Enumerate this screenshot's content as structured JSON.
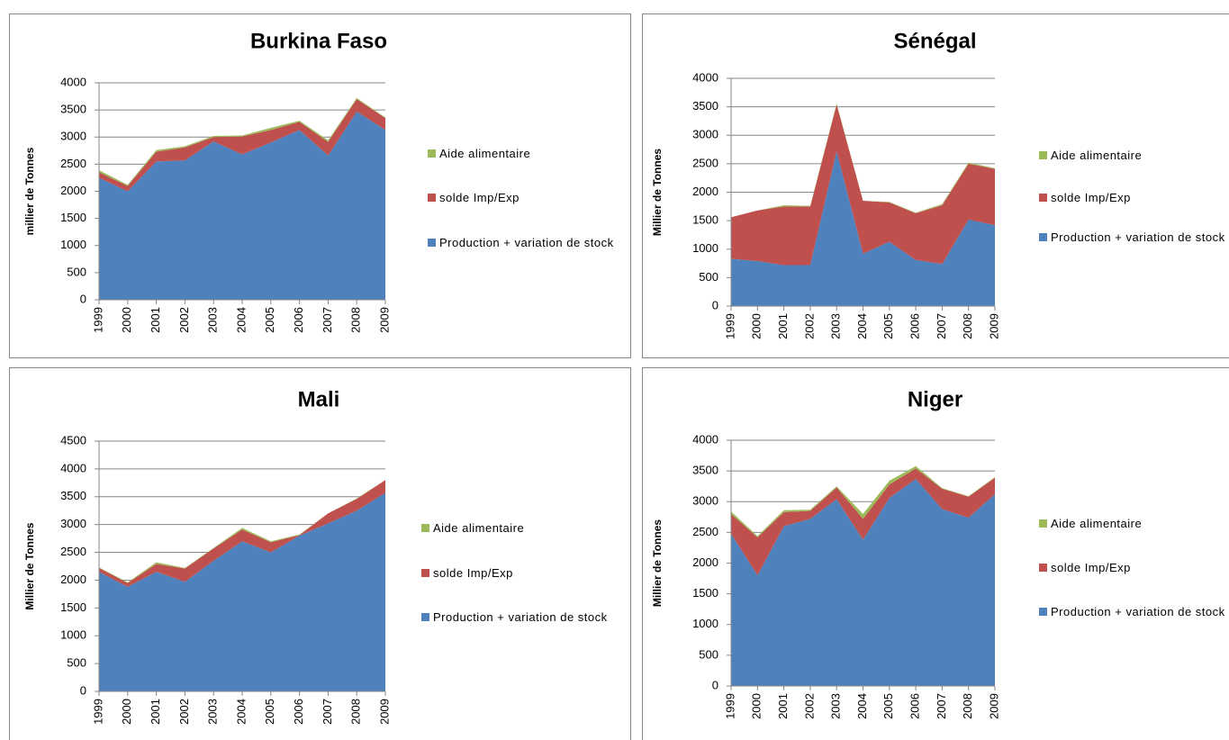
{
  "chart_data": [
    {
      "type": "area",
      "title": "Burkina Faso",
      "y_label": "millier de Tonnes",
      "categories": [
        "1999",
        "2000",
        "2001",
        "2002",
        "2003",
        "2004",
        "2005",
        "2006",
        "2007",
        "2008",
        "2009"
      ],
      "series": [
        {
          "name": "Production + variation de stock",
          "color": "#4f81bd",
          "values": [
            2250,
            2000,
            2550,
            2570,
            2920,
            2680,
            2900,
            3130,
            2660,
            3470,
            3130
          ]
        },
        {
          "name": "solde Imp/Exp",
          "color": "#c0504d",
          "values": [
            100,
            100,
            180,
            240,
            80,
            330,
            230,
            150,
            250,
            230,
            220
          ]
        },
        {
          "name": "Aide alimentaire",
          "color": "#9bbb59",
          "values": [
            40,
            20,
            30,
            20,
            20,
            20,
            40,
            20,
            30,
            20,
            10
          ]
        }
      ],
      "stacked": true,
      "ylim": [
        0,
        4000
      ],
      "yticks": [
        0,
        500,
        1000,
        1500,
        2000,
        2500,
        3000,
        3500,
        4000
      ],
      "grid": true,
      "legend": "right"
    },
    {
      "type": "area",
      "title": "Sénégal",
      "y_label": "Millier de Tonnes",
      "categories": [
        "1999",
        "2000",
        "2001",
        "2002",
        "2003",
        "2004",
        "2005",
        "2006",
        "2007",
        "2008",
        "2009"
      ],
      "series": [
        {
          "name": "Production + variation de stock",
          "color": "#4f81bd",
          "values": [
            830,
            790,
            720,
            720,
            2720,
            920,
            1130,
            810,
            740,
            1520,
            1420
          ]
        },
        {
          "name": "solde Imp/Exp",
          "color": "#c0504d",
          "values": [
            730,
            890,
            1030,
            1030,
            820,
            930,
            690,
            820,
            1030,
            980,
            990
          ]
        },
        {
          "name": "Aide alimentaire",
          "color": "#9bbb59",
          "values": [
            0,
            0,
            20,
            10,
            20,
            0,
            10,
            10,
            20,
            20,
            10
          ]
        }
      ],
      "stacked": true,
      "ylim": [
        0,
        4000
      ],
      "yticks": [
        0,
        500,
        1000,
        1500,
        2000,
        2500,
        3000,
        3500,
        4000
      ],
      "grid": true,
      "legend": "right"
    },
    {
      "type": "area",
      "title": "Mali",
      "y_label": "Millier de Tonnes",
      "categories": [
        "1999",
        "2000",
        "2001",
        "2002",
        "2003",
        "2004",
        "2005",
        "2006",
        "2007",
        "2008",
        "2009"
      ],
      "series": [
        {
          "name": "Production + variation de stock",
          "color": "#4f81bd",
          "values": [
            2150,
            1880,
            2150,
            1970,
            2350,
            2700,
            2500,
            2800,
            3020,
            3250,
            3570
          ]
        },
        {
          "name": "solde Imp/Exp",
          "color": "#c0504d",
          "values": [
            70,
            70,
            140,
            240,
            220,
            210,
            180,
            10,
            180,
            210,
            230
          ]
        },
        {
          "name": "Aide alimentaire",
          "color": "#9bbb59",
          "values": [
            10,
            10,
            30,
            10,
            10,
            30,
            20,
            10,
            0,
            10,
            0
          ]
        }
      ],
      "stacked": true,
      "ylim": [
        0,
        4500
      ],
      "yticks": [
        0,
        500,
        1000,
        1500,
        2000,
        2500,
        3000,
        3500,
        4000,
        4500
      ],
      "grid": true,
      "legend": "right"
    },
    {
      "type": "area",
      "title": "Niger",
      "y_label": "Millier de Tonnes",
      "categories": [
        "1999",
        "2000",
        "2001",
        "2002",
        "2003",
        "2004",
        "2005",
        "2006",
        "2007",
        "2008",
        "2009"
      ],
      "series": [
        {
          "name": "Production + variation de stock",
          "color": "#4f81bd",
          "values": [
            2480,
            1800,
            2600,
            2720,
            3040,
            2380,
            3060,
            3370,
            2880,
            2740,
            3120
          ]
        },
        {
          "name": "solde Imp/Exp",
          "color": "#c0504d",
          "values": [
            320,
            620,
            230,
            130,
            190,
            340,
            220,
            170,
            330,
            340,
            270
          ]
        },
        {
          "name": "Aide alimentaire",
          "color": "#9bbb59",
          "values": [
            40,
            20,
            30,
            20,
            20,
            80,
            60,
            40,
            10,
            10,
            10
          ]
        }
      ],
      "stacked": true,
      "ylim": [
        0,
        4000
      ],
      "yticks": [
        0,
        500,
        1000,
        1500,
        2000,
        2500,
        3000,
        3500,
        4000
      ],
      "grid": true,
      "legend": "right"
    }
  ]
}
